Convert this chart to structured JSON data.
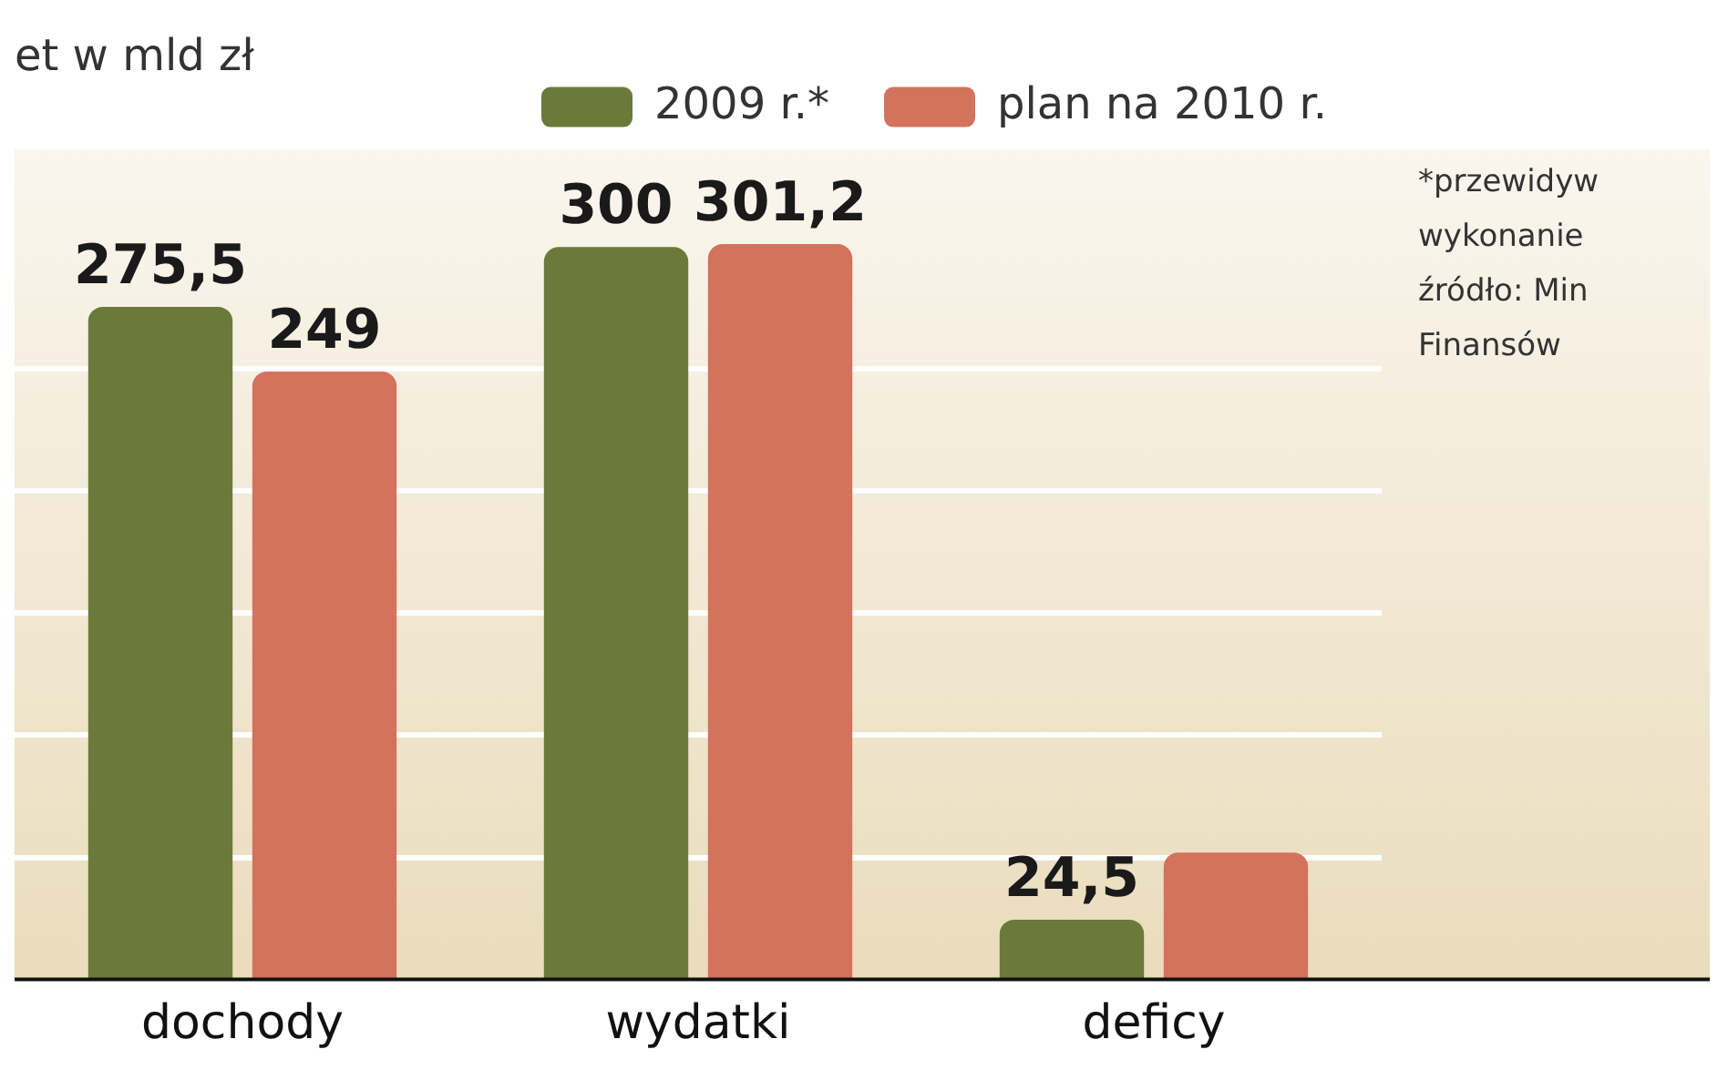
{
  "chart_data": {
    "type": "bar",
    "title": "et w mld zł",
    "categories": [
      "dochody",
      "wydatki",
      "deficy"
    ],
    "series": [
      {
        "name": "2009 r.*",
        "color": "#6b7a3a",
        "values": [
          275.5,
          300,
          24.5
        ],
        "value_labels": [
          "275,5",
          "300",
          "24,5"
        ]
      },
      {
        "name": "plan na 2010 r.",
        "color": "#d4725e",
        "values": [
          249,
          301.2,
          52
        ],
        "value_labels": [
          "249",
          "301,2",
          null
        ]
      }
    ],
    "ylim": [
      0,
      340
    ],
    "yticks": [
      {
        "value": 50,
        "label": null
      },
      {
        "value": 100,
        "label": null
      },
      {
        "value": 150,
        "label": null
      },
      {
        "value": 200,
        "label": null
      },
      {
        "value": 250,
        "label": null
      }
    ],
    "grid": "y",
    "tick_labels": "x",
    "legend": "top right",
    "annotations": [
      "*przewidyw",
      "wykonanie",
      "źródło: Min",
      "Finansów"
    ]
  }
}
